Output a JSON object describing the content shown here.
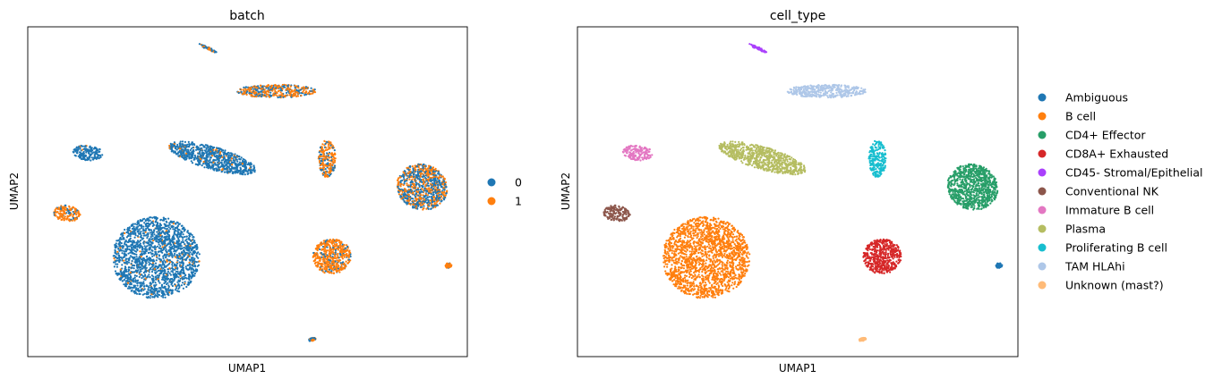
{
  "chart_data": [
    {
      "type": "scatter",
      "title": "batch",
      "xlabel": "UMAP1",
      "ylabel": "UMAP2",
      "xlim": [
        0,
        100
      ],
      "ylim": [
        0,
        100
      ],
      "grid": false,
      "legend_placement": "right",
      "legend": [
        {
          "label": "0",
          "color": "#1f77b4"
        },
        {
          "label": "1",
          "color": "#ff7f0e"
        }
      ],
      "clusters": [
        {
          "name": "Ambiguous",
          "x": 95.7,
          "y": 27.6,
          "rx": 0.7,
          "ry": 0.8,
          "rot": -20,
          "batch_mix": 0.9
        },
        {
          "name": "B cell",
          "x": 29.2,
          "y": 30.0,
          "rx": 9.9,
          "ry": 12.4,
          "rot": 0,
          "batch_mix": 0.05
        },
        {
          "name": "CD4+ Effector",
          "x": 89.7,
          "y": 51.4,
          "rx": 5.7,
          "ry": 7.0,
          "rot": 10,
          "batch_mix": 0.45
        },
        {
          "name": "CD8A+ Exhausted",
          "x": 69.2,
          "y": 30.4,
          "rx": 4.3,
          "ry": 5.4,
          "rot": 0,
          "batch_mix": 0.85
        },
        {
          "name": "CD45- Stromal/Epithelial",
          "x": 41.0,
          "y": 93.5,
          "rx": 2.4,
          "ry": 0.4,
          "rot": -32,
          "batch_mix": 0.4
        },
        {
          "name": "Conventional NK",
          "x": 8.9,
          "y": 43.4,
          "rx": 3.1,
          "ry": 2.4,
          "rot": -15,
          "batch_mix": 0.85
        },
        {
          "name": "Immature B cell",
          "x": 13.7,
          "y": 61.8,
          "rx": 3.4,
          "ry": 2.3,
          "rot": -10,
          "batch_mix": 0.02
        },
        {
          "name": "Plasma",
          "x": 42.0,
          "y": 60.2,
          "rx": 10.7,
          "ry": 3.3,
          "rot": -22,
          "batch_mix": 0.06
        },
        {
          "name": "Proliferating B cell",
          "x": 68.1,
          "y": 60.0,
          "rx": 2.0,
          "ry": 5.6,
          "rot": 0,
          "batch_mix": 0.7
        },
        {
          "name": "TAM HLAhi",
          "x": 56.6,
          "y": 80.5,
          "rx": 9.0,
          "ry": 2.0,
          "rot": 0,
          "batch_mix": 0.55
        },
        {
          "name": "Unknown (mast?)",
          "x": 64.7,
          "y": 5.2,
          "rx": 0.8,
          "ry": 0.5,
          "rot": 20,
          "batch_mix": 0.2
        }
      ]
    },
    {
      "type": "scatter",
      "title": "cell_type",
      "xlabel": "UMAP1",
      "ylabel": "UMAP2",
      "xlim": [
        0,
        100
      ],
      "ylim": [
        0,
        100
      ],
      "grid": false,
      "legend_placement": "right",
      "legend": [
        {
          "label": "Ambiguous",
          "color": "#1f77b4"
        },
        {
          "label": "B cell",
          "color": "#ff7f0e"
        },
        {
          "label": "CD4+ Effector",
          "color": "#279e68"
        },
        {
          "label": "CD8A+ Exhausted",
          "color": "#d62728"
        },
        {
          "label": "CD45- Stromal/Epithelial",
          "color": "#aa40fc"
        },
        {
          "label": "Conventional NK",
          "color": "#8c564b"
        },
        {
          "label": "Immature B cell",
          "color": "#e377c2"
        },
        {
          "label": "Plasma",
          "color": "#b5bd61"
        },
        {
          "label": "Proliferating B cell",
          "color": "#17becf"
        },
        {
          "label": "TAM HLAhi",
          "color": "#aec7e8"
        },
        {
          "label": "Unknown (mast?)",
          "color": "#ffbb78"
        }
      ]
    }
  ]
}
